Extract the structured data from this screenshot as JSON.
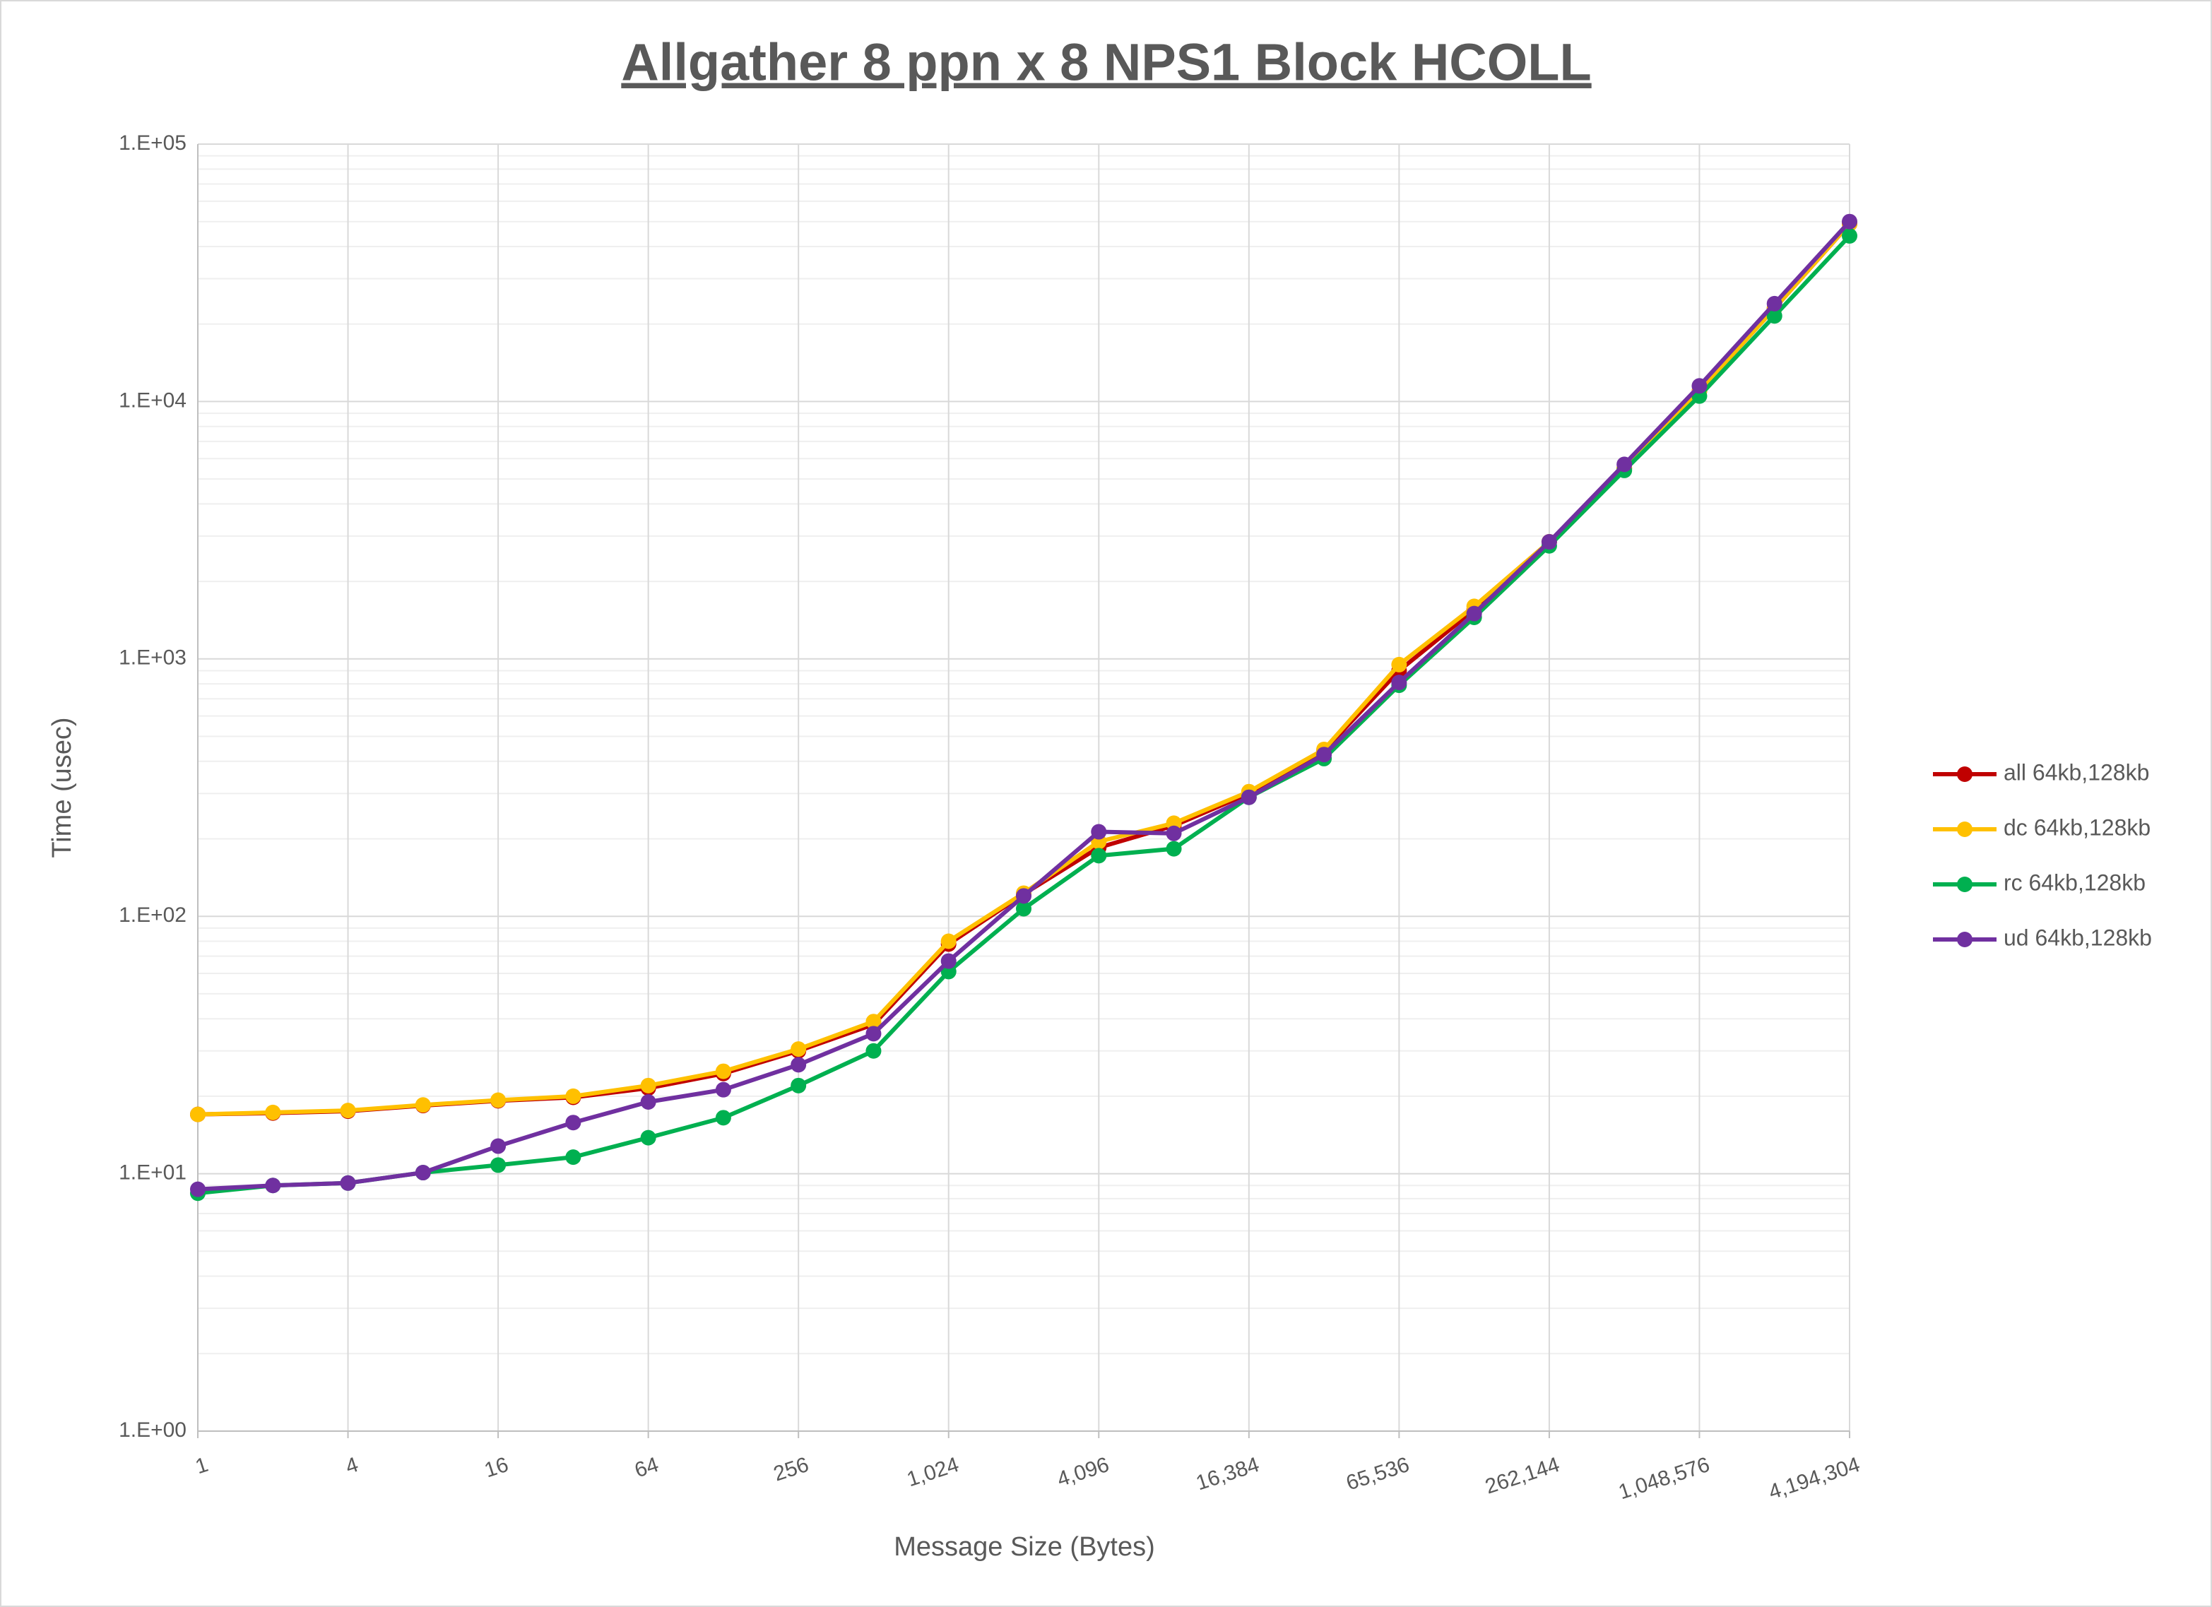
{
  "chart_data": {
    "type": "line",
    "title": "Allgather 8 ppn x 8 NPS1 Block HCOLL",
    "x_label": "Message Size (Bytes)",
    "y_label": "Time (usec)",
    "x": [
      1,
      2,
      4,
      8,
      16,
      32,
      64,
      128,
      256,
      512,
      1024,
      2048,
      4096,
      8192,
      16384,
      32768,
      65536,
      131072,
      262144,
      524288,
      1048576,
      2097152,
      4194304
    ],
    "x_log": true,
    "y_log": true,
    "grid": true,
    "minor_grid": true,
    "legend": "right",
    "xlim": [
      1,
      4194304
    ],
    "xticks": [
      1,
      4,
      16,
      64,
      256,
      {
        "value": 1024,
        "label": "1,024"
      },
      {
        "value": 4096,
        "label": "4,096"
      },
      {
        "value": 16384,
        "label": "16,384"
      },
      {
        "value": 65536,
        "label": "65,536"
      },
      {
        "value": 262144,
        "label": "262,144"
      },
      {
        "value": 1048576,
        "label": "1,048,576"
      },
      {
        "value": 4194304,
        "label": "4,194,304"
      }
    ],
    "ylim": [
      1,
      100000
    ],
    "yticks": [
      {
        "value": 1,
        "label": "1.E+00"
      },
      {
        "value": 10,
        "label": "1.E+01"
      },
      {
        "value": 100,
        "label": "1.E+02"
      },
      {
        "value": 1000,
        "label": "1.E+03"
      },
      {
        "value": 10000,
        "label": "1.E+04"
      },
      {
        "value": 100000,
        "label": "1.E+05"
      }
    ],
    "series": [
      {
        "name": "all 64kb,128kb",
        "color": "#c00000",
        "values": [
          17,
          17.2,
          17.5,
          18.4,
          19.2,
          19.8,
          21.5,
          24.5,
          30,
          38,
          78,
          122,
          185,
          225,
          300,
          440,
          900,
          1550,
          2850,
          5500,
          11000,
          23000,
          49000
        ]
      },
      {
        "name": "dc 64kb,128kb",
        "color": "#ffc000",
        "values": [
          17,
          17.3,
          17.6,
          18.5,
          19.3,
          20,
          22,
          25,
          30.5,
          39,
          80,
          123,
          195,
          230,
          305,
          445,
          950,
          1600,
          2850,
          5500,
          11000,
          23000,
          49000
        ]
      },
      {
        "name": "rc 64kb,128kb",
        "color": "#00b050",
        "values": [
          8.4,
          9,
          9.2,
          10.1,
          10.8,
          11.6,
          13.8,
          16.5,
          22,
          30,
          61,
          107,
          172,
          183,
          290,
          410,
          790,
          1450,
          2750,
          5400,
          10500,
          21500,
          44000
        ]
      },
      {
        "name": "ud 64kb,128kb",
        "color": "#7030a0",
        "values": [
          8.7,
          9,
          9.2,
          10.1,
          12.8,
          15.8,
          19,
          21.2,
          26.5,
          35,
          67,
          120,
          213,
          210,
          290,
          425,
          810,
          1500,
          2850,
          5700,
          11500,
          24000,
          50000
        ]
      }
    ]
  }
}
